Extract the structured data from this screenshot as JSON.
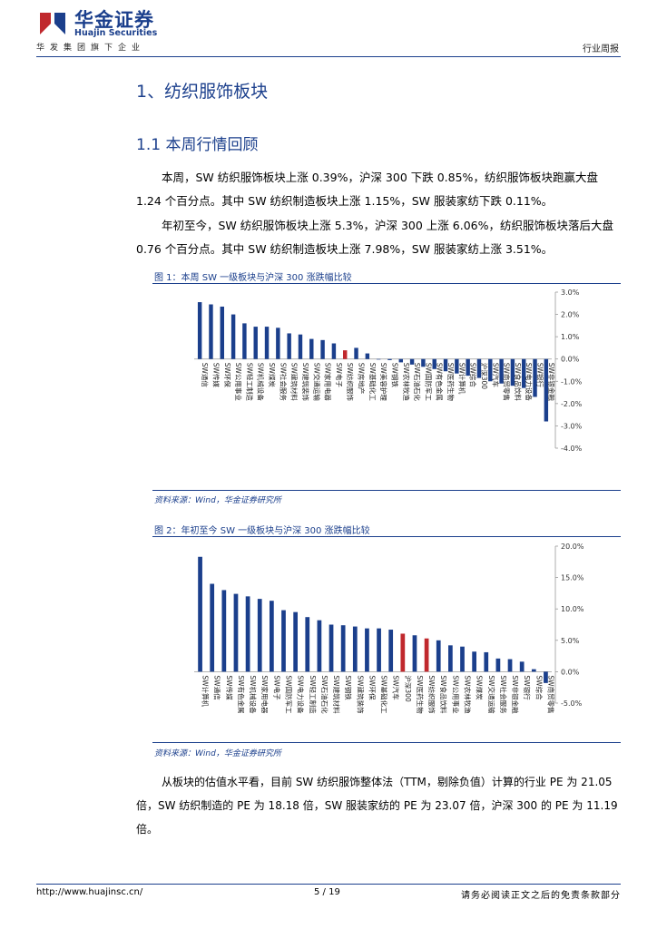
{
  "header": {
    "logo_cn": "华金证券",
    "logo_en": "Huajin Securities",
    "slogan": "华发集团旗下企业",
    "report_type": "行业周报",
    "brand_color": "#1b3f8c",
    "logo_icon": "huajin-logo-icon"
  },
  "section": {
    "title": "1、纺织服饰板块",
    "subtitle": "1.1 本周行情回顾",
    "para1": "本周，SW 纺织服饰板块上涨 0.39%，沪深 300 下跌 0.85%，纺织服饰板块跑赢大盘 1.24 个百分点。其中 SW 纺织制造板块上涨 1.15%，SW 服装家纺下跌 0.11%。",
    "para2": "年初至今，SW 纺织服饰板块上涨 5.3%，沪深 300 上涨 6.06%，纺织服饰板块落后大盘 0.76 个百分点。其中 SW 纺织制造板块上涨 7.98%，SW 服装家纺上涨 3.51%。",
    "pe_para": "从板块的估值水平看，目前 SW 纺织服饰整体法（TTM，剔除负值）计算的行业 PE 为 21.05 倍，SW 纺织制造的 PE 为 18.18 倍，SW 服装家纺的 PE 为 23.07 倍，沪深 300 的 PE 为 11.19 倍。"
  },
  "figures": [
    {
      "title": "图 1：本周 SW 一级板块与沪深 300 涨跌幅比较",
      "source": "资料来源：Wind，华金证券研究所"
    },
    {
      "title": "图 2：年初至今 SW 一级板块与沪深 300 涨跌幅比较",
      "source": "资料来源：Wind，华金证券研究所"
    }
  ],
  "chart_data": [
    {
      "type": "bar",
      "colors": {
        "bar": "#1b3f8c",
        "highlight": "#c0282d"
      },
      "highlight": "SW纺织服饰",
      "ylim": [
        -4,
        3
      ],
      "yticks": [
        "3.0%",
        "2.0%",
        "1.0%",
        "0.0%",
        "-1.0%",
        "-2.0%",
        "-3.0%",
        "-4.0%"
      ],
      "categories": [
        "SW通信",
        "SW传媒",
        "SW环保",
        "SW公用事业",
        "SW轻工制造",
        "SW机械设备",
        "SW煤炭",
        "SW社会服务",
        "SW建筑材料",
        "SW建筑装饰",
        "SW交通运输",
        "SW家用电器",
        "SW电子",
        "SW纺织服饰",
        "SW房地产",
        "SW基础化工",
        "SW美容护理",
        "SW钢铁",
        "SW农林牧渔",
        "SW石油石化",
        "SW国防军工",
        "SW有色金属",
        "SW医药生物",
        "SW计算机",
        "SW综合",
        "沪深300",
        "SW汽车",
        "SW商贸零售",
        "SW食品饮料",
        "SW电力设备",
        "SW银行",
        "SW非银金融"
      ],
      "values": [
        2.55,
        2.45,
        2.35,
        2.0,
        1.6,
        1.45,
        1.45,
        1.4,
        1.15,
        1.1,
        0.9,
        0.85,
        0.7,
        0.39,
        0.5,
        0.25,
        0.0,
        -0.05,
        -0.15,
        -0.25,
        -0.35,
        -0.45,
        -0.55,
        -0.65,
        -0.75,
        -0.85,
        -1.0,
        -1.1,
        -1.2,
        -1.3,
        -1.7,
        -2.8
      ]
    },
    {
      "type": "bar",
      "colors": {
        "bar": "#1b3f8c",
        "highlight": "#c0282d"
      },
      "highlight": [
        "沪深300",
        "SW纺织服饰"
      ],
      "ylim": [
        -5,
        20
      ],
      "yticks": [
        "20.0%",
        "15.0%",
        "10.0%",
        "5.0%",
        "0.0%",
        "-5.0%"
      ],
      "categories": [
        "SW计算机",
        "SW通信",
        "SW传媒",
        "SW有色金属",
        "SW机械设备",
        "SW家用电器",
        "SW电子",
        "SW国防军工",
        "SW电力设备",
        "SW轻工制造",
        "SW石油石化",
        "SW建筑材料",
        "SW钢铁",
        "SW建筑装饰",
        "SW环保",
        "SW基础化工",
        "SW汽车",
        "沪深300",
        "SW医药生物",
        "SW纺织服饰",
        "SW食品饮料",
        "SW公用事业",
        "SW农林牧渔",
        "SW煤炭",
        "SW交通运输",
        "SW社会服务",
        "SW非银金融",
        "SW银行",
        "SW综合",
        "SW商贸零售"
      ],
      "values": [
        18.3,
        14.0,
        13.0,
        12.4,
        12.0,
        11.6,
        11.3,
        9.8,
        9.5,
        8.7,
        8.2,
        7.5,
        7.4,
        7.2,
        6.9,
        6.9,
        6.7,
        6.06,
        5.8,
        5.3,
        5.0,
        4.2,
        4.0,
        3.2,
        3.1,
        2.1,
        2.0,
        1.6,
        0.4,
        -1.8
      ]
    }
  ],
  "footer": {
    "url": "http://www.huajinsc.cn/",
    "page": "5 / 19",
    "note": "请务必阅读正文之后的免责条款部分"
  }
}
